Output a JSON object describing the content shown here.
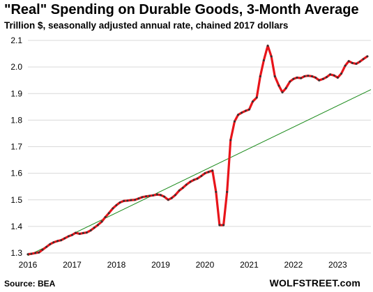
{
  "header": {
    "title": "\"Real\" Spending on Durable Goods, 3-Month Average",
    "subtitle": "Trillion $, seasonally adjusted annual rate, chained 2017 dollars"
  },
  "footer": {
    "source": "Source: BEA",
    "brand": "WOLFSTREET.com"
  },
  "chart_data": {
    "type": "line",
    "title": "\"Real\" Spending on Durable Goods, 3-Month Average",
    "subtitle": "Trillion $, seasonally adjusted annual rate, chained 2017 dollars",
    "xlabel": "",
    "ylabel": "",
    "xlim": [
      2016.0,
      2023.75
    ],
    "ylim": [
      1.3,
      2.1
    ],
    "x_ticks": [
      2016,
      2017,
      2018,
      2019,
      2020,
      2021,
      2022,
      2023
    ],
    "y_ticks": [
      1.3,
      1.4,
      1.5,
      1.6,
      1.7,
      1.8,
      1.9,
      2.0,
      2.1
    ],
    "x_tick_labels": [
      "2016",
      "2017",
      "2018",
      "2019",
      "2020",
      "2021",
      "2022",
      "2023"
    ],
    "y_tick_labels": [
      "1.3",
      "1.4",
      "1.5",
      "1.6",
      "1.7",
      "1.8",
      "1.9",
      "2.0",
      "2.1"
    ],
    "grid": "horizontal",
    "colors": {
      "series": "#e8141a",
      "markers": "#333333",
      "trend": "#1a8a1a",
      "grid": "#d9d9d9"
    },
    "series": [
      {
        "values": [
          {
            "x": 2016.0,
            "y": 1.295
          },
          {
            "x": 2016.08,
            "y": 1.297
          },
          {
            "x": 2016.17,
            "y": 1.3
          },
          {
            "x": 2016.25,
            "y": 1.302
          },
          {
            "x": 2016.33,
            "y": 1.312
          },
          {
            "x": 2016.42,
            "y": 1.323
          },
          {
            "x": 2016.5,
            "y": 1.333
          },
          {
            "x": 2016.58,
            "y": 1.34
          },
          {
            "x": 2016.67,
            "y": 1.345
          },
          {
            "x": 2016.75,
            "y": 1.348
          },
          {
            "x": 2016.83,
            "y": 1.355
          },
          {
            "x": 2016.92,
            "y": 1.363
          },
          {
            "x": 2017.0,
            "y": 1.368
          },
          {
            "x": 2017.08,
            "y": 1.376
          },
          {
            "x": 2017.17,
            "y": 1.372
          },
          {
            "x": 2017.25,
            "y": 1.375
          },
          {
            "x": 2017.33,
            "y": 1.377
          },
          {
            "x": 2017.42,
            "y": 1.385
          },
          {
            "x": 2017.5,
            "y": 1.395
          },
          {
            "x": 2017.58,
            "y": 1.405
          },
          {
            "x": 2017.67,
            "y": 1.418
          },
          {
            "x": 2017.75,
            "y": 1.435
          },
          {
            "x": 2017.83,
            "y": 1.45
          },
          {
            "x": 2017.92,
            "y": 1.468
          },
          {
            "x": 2018.0,
            "y": 1.48
          },
          {
            "x": 2018.08,
            "y": 1.49
          },
          {
            "x": 2018.17,
            "y": 1.496
          },
          {
            "x": 2018.25,
            "y": 1.497
          },
          {
            "x": 2018.33,
            "y": 1.499
          },
          {
            "x": 2018.42,
            "y": 1.5
          },
          {
            "x": 2018.5,
            "y": 1.505
          },
          {
            "x": 2018.58,
            "y": 1.51
          },
          {
            "x": 2018.67,
            "y": 1.513
          },
          {
            "x": 2018.75,
            "y": 1.515
          },
          {
            "x": 2018.83,
            "y": 1.517
          },
          {
            "x": 2018.92,
            "y": 1.52
          },
          {
            "x": 2019.0,
            "y": 1.518
          },
          {
            "x": 2019.08,
            "y": 1.512
          },
          {
            "x": 2019.17,
            "y": 1.5
          },
          {
            "x": 2019.25,
            "y": 1.507
          },
          {
            "x": 2019.33,
            "y": 1.518
          },
          {
            "x": 2019.42,
            "y": 1.535
          },
          {
            "x": 2019.5,
            "y": 1.545
          },
          {
            "x": 2019.58,
            "y": 1.557
          },
          {
            "x": 2019.67,
            "y": 1.568
          },
          {
            "x": 2019.75,
            "y": 1.575
          },
          {
            "x": 2019.83,
            "y": 1.58
          },
          {
            "x": 2019.92,
            "y": 1.59
          },
          {
            "x": 2020.0,
            "y": 1.6
          },
          {
            "x": 2020.08,
            "y": 1.605
          },
          {
            "x": 2020.17,
            "y": 1.61
          },
          {
            "x": 2020.25,
            "y": 1.53
          },
          {
            "x": 2020.33,
            "y": 1.405
          },
          {
            "x": 2020.42,
            "y": 1.405
          },
          {
            "x": 2020.5,
            "y": 1.53
          },
          {
            "x": 2020.58,
            "y": 1.725
          },
          {
            "x": 2020.67,
            "y": 1.795
          },
          {
            "x": 2020.75,
            "y": 1.82
          },
          {
            "x": 2020.83,
            "y": 1.828
          },
          {
            "x": 2020.92,
            "y": 1.835
          },
          {
            "x": 2021.0,
            "y": 1.84
          },
          {
            "x": 2021.08,
            "y": 1.87
          },
          {
            "x": 2021.17,
            "y": 1.885
          },
          {
            "x": 2021.25,
            "y": 1.965
          },
          {
            "x": 2021.33,
            "y": 2.025
          },
          {
            "x": 2021.42,
            "y": 2.08
          },
          {
            "x": 2021.5,
            "y": 2.04
          },
          {
            "x": 2021.58,
            "y": 1.965
          },
          {
            "x": 2021.67,
            "y": 1.93
          },
          {
            "x": 2021.75,
            "y": 1.905
          },
          {
            "x": 2021.83,
            "y": 1.92
          },
          {
            "x": 2021.92,
            "y": 1.945
          },
          {
            "x": 2022.0,
            "y": 1.955
          },
          {
            "x": 2022.08,
            "y": 1.96
          },
          {
            "x": 2022.17,
            "y": 1.958
          },
          {
            "x": 2022.25,
            "y": 1.965
          },
          {
            "x": 2022.33,
            "y": 1.967
          },
          {
            "x": 2022.42,
            "y": 1.965
          },
          {
            "x": 2022.5,
            "y": 1.96
          },
          {
            "x": 2022.58,
            "y": 1.95
          },
          {
            "x": 2022.67,
            "y": 1.955
          },
          {
            "x": 2022.75,
            "y": 1.962
          },
          {
            "x": 2022.83,
            "y": 1.972
          },
          {
            "x": 2022.92,
            "y": 1.968
          },
          {
            "x": 2023.0,
            "y": 1.96
          },
          {
            "x": 2023.08,
            "y": 1.975
          },
          {
            "x": 2023.17,
            "y": 2.005
          },
          {
            "x": 2023.25,
            "y": 2.022
          },
          {
            "x": 2023.33,
            "y": 2.015
          },
          {
            "x": 2023.42,
            "y": 2.012
          },
          {
            "x": 2023.5,
            "y": 2.02
          },
          {
            "x": 2023.58,
            "y": 2.03
          },
          {
            "x": 2023.67,
            "y": 2.04
          }
        ]
      }
    ],
    "trendline": {
      "x": [
        2016.0,
        2023.75
      ],
      "y": [
        1.29,
        1.915
      ]
    }
  }
}
